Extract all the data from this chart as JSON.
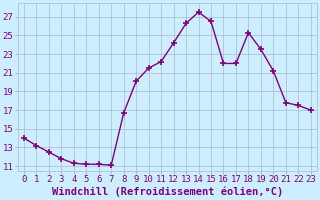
{
  "x": [
    0,
    1,
    2,
    3,
    4,
    5,
    6,
    7,
    8,
    9,
    10,
    11,
    12,
    13,
    14,
    15,
    16,
    17,
    18,
    19,
    20,
    21,
    22,
    23
  ],
  "y": [
    14.0,
    13.2,
    12.5,
    11.8,
    11.3,
    11.2,
    11.2,
    11.1,
    16.7,
    20.1,
    21.5,
    22.2,
    24.2,
    26.3,
    27.5,
    26.5,
    22.0,
    22.0,
    25.3,
    23.5,
    21.2,
    17.8,
    17.5,
    17.0
  ],
  "line_color": "#800080",
  "marker": "+",
  "marker_size": 4,
  "marker_lw": 1.2,
  "bg_color": "#cceeff",
  "grid_color": "#aabbcc",
  "xlabel": "Windchill (Refroidissement éolien,°C)",
  "yticks": [
    11,
    13,
    15,
    17,
    19,
    21,
    23,
    25,
    27
  ],
  "xtick_labels": [
    "0",
    "1",
    "2",
    "3",
    "4",
    "5",
    "6",
    "7",
    "8",
    "9",
    "10",
    "11",
    "12",
    "13",
    "14",
    "15",
    "16",
    "17",
    "18",
    "19",
    "20",
    "21",
    "22",
    "23"
  ],
  "ylim": [
    10.5,
    28.5
  ],
  "xlim": [
    -0.5,
    23.5
  ],
  "font_color": "#800080",
  "font_size": 6.5,
  "xlabel_fontsize": 7.5,
  "line_width": 1.0
}
